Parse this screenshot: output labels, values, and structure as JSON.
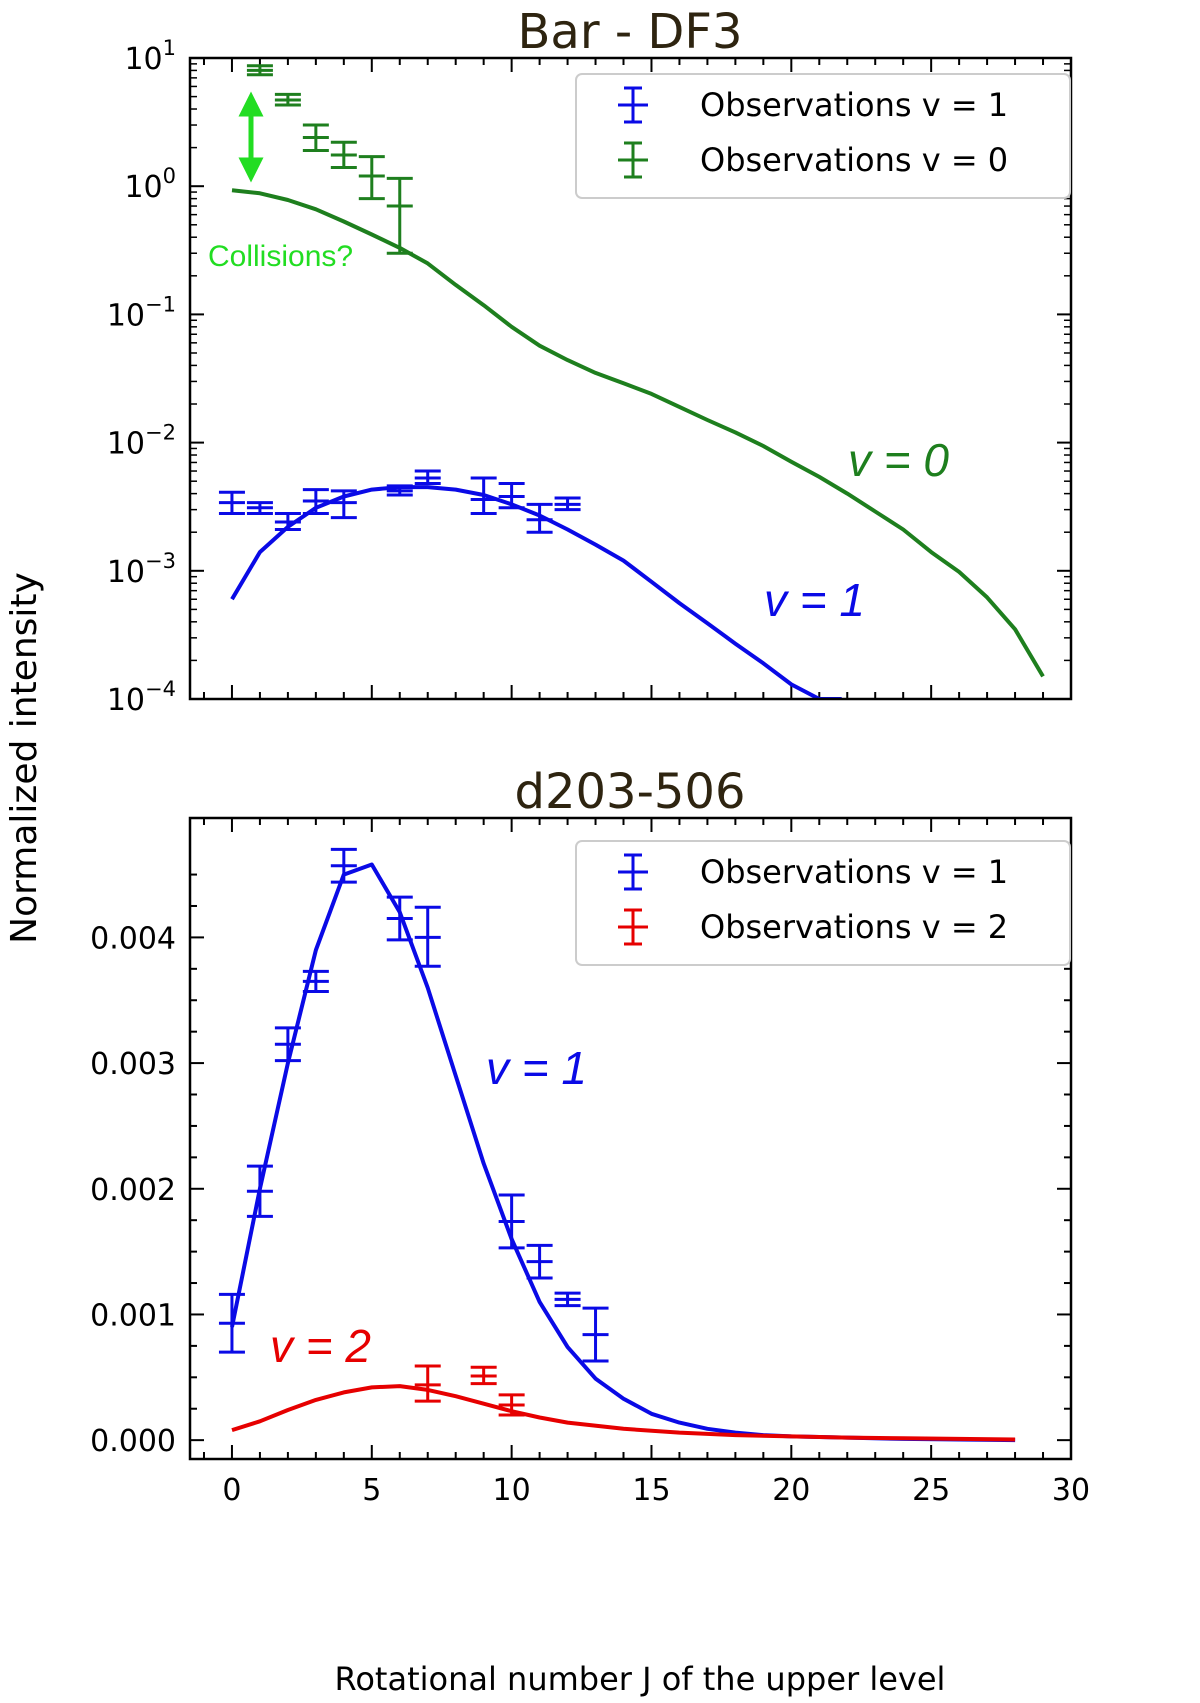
{
  "chart_data": [
    {
      "type": "line",
      "title": "Bar - DF3",
      "yscale": "log",
      "xlim": [
        -1.5,
        30
      ],
      "ylim_exponent": [
        -4,
        1
      ],
      "y_tick_exponents": [
        1,
        0,
        -1,
        -2,
        -3,
        -4
      ],
      "y_tick_base": "10",
      "x_ticks": [
        0,
        5,
        10,
        15,
        20,
        25,
        30
      ],
      "legend": [
        "Observations v = 1",
        "Observations v = 0"
      ],
      "legend_placement": "top-right",
      "series": [
        {
          "name": "v = 0",
          "kind": "model",
          "color": "#1e7f1e",
          "label": "v = 0",
          "x": [
            0,
            1,
            2,
            3,
            4,
            5,
            6,
            7,
            8,
            9,
            10,
            11,
            12,
            13,
            14,
            15,
            16,
            17,
            18,
            19,
            20,
            21,
            22,
            23,
            24,
            25,
            26,
            27,
            28,
            29
          ],
          "y": [
            0.93,
            0.88,
            0.78,
            0.66,
            0.53,
            0.42,
            0.33,
            0.25,
            0.17,
            0.118,
            0.08,
            0.057,
            0.044,
            0.035,
            0.029,
            0.024,
            0.019,
            0.015,
            0.012,
            0.0094,
            0.0071,
            0.0054,
            0.004,
            0.0029,
            0.0021,
            0.0014,
            0.00098,
            0.00062,
            0.00035,
            0.00015
          ]
        },
        {
          "name": "v = 1",
          "kind": "model",
          "color": "#0a0ae6",
          "label": "v = 1",
          "x": [
            0,
            1,
            2,
            3,
            4,
            5,
            6,
            7,
            8,
            9,
            10,
            11,
            12,
            13,
            14,
            15,
            16,
            17,
            18,
            19,
            20,
            21,
            21.8
          ],
          "y": [
            0.0006,
            0.0014,
            0.0022,
            0.0031,
            0.0038,
            0.0043,
            0.0045,
            0.0045,
            0.0043,
            0.0039,
            0.0033,
            0.0027,
            0.0021,
            0.0016,
            0.0012,
            0.00082,
            0.00056,
            0.00039,
            0.00027,
            0.00019,
            0.00013,
            0.0001,
            0.0001
          ]
        },
        {
          "name": "Observations v = 0",
          "kind": "observations",
          "color": "#1e7f1e",
          "x": [
            1,
            2,
            3,
            4,
            5,
            6
          ],
          "y": [
            8.0,
            4.7,
            2.4,
            1.75,
            1.2,
            0.7
          ],
          "y_low": [
            7.4,
            4.3,
            1.9,
            1.4,
            0.8,
            0.3
          ],
          "y_high": [
            8.7,
            5.2,
            3.0,
            2.2,
            1.7,
            1.15
          ]
        },
        {
          "name": "Observations v = 1",
          "kind": "observations",
          "color": "#0a0ae6",
          "x": [
            0,
            1,
            2,
            3,
            4,
            6,
            7,
            9,
            10,
            11,
            12
          ],
          "y": [
            0.0034,
            0.0031,
            0.0024,
            0.0035,
            0.0034,
            0.0042,
            0.0053,
            0.0036,
            0.0038,
            0.0025,
            0.0033
          ],
          "y_low": [
            0.0028,
            0.0028,
            0.0021,
            0.0028,
            0.0026,
            0.0039,
            0.0048,
            0.0028,
            0.0031,
            0.002,
            0.003
          ],
          "y_high": [
            0.0041,
            0.0034,
            0.0028,
            0.0043,
            0.0042,
            0.0046,
            0.006,
            0.0053,
            0.0048,
            0.0033,
            0.0037
          ]
        }
      ],
      "annotations": [
        {
          "text": "Collisions?",
          "color": "#22dd22"
        }
      ]
    },
    {
      "type": "line",
      "title": "d203-506",
      "yscale": "linear",
      "xlim": [
        -1.5,
        30
      ],
      "ylim": [
        -0.00015,
        0.00495
      ],
      "y_ticks": [
        0.0,
        0.001,
        0.002,
        0.003,
        0.004
      ],
      "y_tick_labels": [
        "0.000",
        "0.001",
        "0.002",
        "0.003",
        "0.004"
      ],
      "x_ticks": [
        0,
        5,
        10,
        15,
        20,
        25,
        30
      ],
      "x_tick_labels": [
        "0",
        "5",
        "10",
        "15",
        "20",
        "25",
        "30"
      ],
      "xlabel": "Rotational number J of the upper level",
      "legend": [
        "Observations v = 1",
        "Observations v = 2"
      ],
      "legend_placement": "top-right",
      "series": [
        {
          "name": "v = 1",
          "kind": "model",
          "color": "#0a0ae6",
          "label": "v = 1",
          "x": [
            0,
            1,
            2,
            3,
            4,
            5,
            6,
            7,
            8,
            9,
            10,
            11,
            12,
            13,
            14,
            15,
            16,
            17,
            18,
            19,
            20,
            22,
            24,
            26,
            28
          ],
          "y": [
            0.0009,
            0.002,
            0.003,
            0.0039,
            0.0045,
            0.00458,
            0.0042,
            0.0036,
            0.0029,
            0.0022,
            0.0016,
            0.0011,
            0.00074,
            0.00049,
            0.00033,
            0.00021,
            0.00014,
            9e-05,
            6e-05,
            4e-05,
            3e-05,
            2e-05,
            1e-05,
            5e-06,
            0.0
          ]
        },
        {
          "name": "v = 2",
          "kind": "model",
          "color": "#e60000",
          "label": "v = 2",
          "x": [
            0,
            1,
            2,
            3,
            4,
            5,
            6,
            7,
            8,
            9,
            10,
            11,
            12,
            14,
            16,
            18,
            20,
            22,
            24,
            26,
            28
          ],
          "y": [
            8e-05,
            0.00015,
            0.00024,
            0.00032,
            0.00038,
            0.00042,
            0.00043,
            0.0004,
            0.00035,
            0.00029,
            0.00023,
            0.00018,
            0.00014,
            9e-05,
            6e-05,
            4e-05,
            3e-05,
            2e-05,
            1.5e-05,
            1e-05,
            5e-06
          ]
        },
        {
          "name": "Observations v = 1",
          "kind": "observations",
          "color": "#0a0ae6",
          "x": [
            0,
            1,
            2,
            3,
            4,
            6,
            7,
            10,
            11,
            12,
            13
          ],
          "y": [
            0.00093,
            0.00198,
            0.00315,
            0.00365,
            0.00457,
            0.00415,
            0.004,
            0.00174,
            0.00142,
            0.00112,
            0.00084
          ],
          "y_low": [
            0.0007,
            0.00178,
            0.00302,
            0.00357,
            0.00444,
            0.00398,
            0.00377,
            0.00153,
            0.00129,
            0.00107,
            0.00063
          ],
          "y_high": [
            0.00116,
            0.00218,
            0.00328,
            0.00373,
            0.0047,
            0.00432,
            0.00424,
            0.00195,
            0.00155,
            0.00117,
            0.00105
          ]
        },
        {
          "name": "Observations v = 2",
          "kind": "observations",
          "color": "#e60000",
          "x": [
            7,
            9,
            10
          ],
          "y": [
            0.00044,
            0.00051,
            0.00028
          ],
          "y_low": [
            0.00031,
            0.00045,
            0.0002
          ],
          "y_high": [
            0.00059,
            0.00058,
            0.00036
          ]
        }
      ]
    }
  ],
  "shared_ylabel": "Normalized intensity",
  "colors": {
    "v0": "#1e7f1e",
    "v1": "#0a0ae6",
    "v2": "#e60000",
    "annotation": "#22dd22",
    "title": "#2e2410"
  }
}
